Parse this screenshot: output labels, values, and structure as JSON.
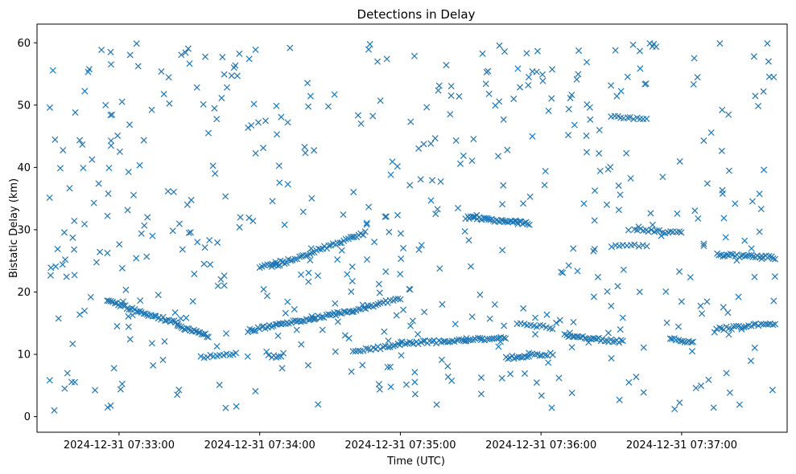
{
  "chart_data": {
    "type": "scatter",
    "title": "Detections in Delay",
    "xlabel": "Time (UTC)",
    "ylabel": "Bistatic Delay (km)",
    "marker": "x",
    "color": "#1f77b4",
    "grid": false,
    "legend": "none",
    "xlim": [
      "2024-12-31 07:32:25",
      "2024-12-31 07:37:45"
    ],
    "ylim": [
      -2.5,
      63
    ],
    "x_ticks": [
      "2024-12-31 07:33:00",
      "2024-12-31 07:34:00",
      "2024-12-31 07:35:00",
      "2024-12-31 07:36:00",
      "2024-12-31 07:37:00"
    ],
    "y_ticks": [
      0,
      10,
      20,
      30,
      40,
      50,
      60
    ],
    "tracks": [
      {
        "start": "2024-12-31 07:32:55",
        "end": "2024-12-31 07:33:25",
        "delay_start": 18.5,
        "delay_end": 15.0,
        "points": 40
      },
      {
        "start": "2024-12-31 07:33:25",
        "end": "2024-12-31 07:33:38",
        "delay_start": 14.5,
        "delay_end": 13.0,
        "points": 20
      },
      {
        "start": "2024-12-31 07:33:35",
        "end": "2024-12-31 07:33:50",
        "delay_start": 9.5,
        "delay_end": 10.0,
        "points": 12
      },
      {
        "start": "2024-12-31 07:33:55",
        "end": "2024-12-31 07:34:40",
        "delay_start": 13.8,
        "delay_end": 17.0,
        "points": 55
      },
      {
        "start": "2024-12-31 07:34:00",
        "end": "2024-12-31 07:34:10",
        "delay_start": 24.0,
        "delay_end": 25.0,
        "points": 10
      },
      {
        "start": "2024-12-31 07:34:05",
        "end": "2024-12-31 07:34:45",
        "delay_start": 24.0,
        "delay_end": 29.5,
        "points": 45
      },
      {
        "start": "2024-12-31 07:34:40",
        "end": "2024-12-31 07:35:00",
        "delay_start": 17.0,
        "delay_end": 19.0,
        "points": 20
      },
      {
        "start": "2024-12-31 07:34:05",
        "end": "2024-12-31 07:34:10",
        "delay_start": 9.5,
        "delay_end": 10.0,
        "points": 6
      },
      {
        "start": "2024-12-31 07:34:40",
        "end": "2024-12-31 07:35:00",
        "delay_start": 10.5,
        "delay_end": 11.5,
        "points": 20
      },
      {
        "start": "2024-12-31 07:35:00",
        "end": "2024-12-31 07:35:28",
        "delay_start": 11.8,
        "delay_end": 12.2,
        "points": 30
      },
      {
        "start": "2024-12-31 07:35:28",
        "end": "2024-12-31 07:35:45",
        "delay_start": 12.5,
        "delay_end": 12.5,
        "points": 18
      },
      {
        "start": "2024-12-31 07:35:28",
        "end": "2024-12-31 07:35:55",
        "delay_start": 32.0,
        "delay_end": 31.0,
        "points": 40
      },
      {
        "start": "2024-12-31 07:35:45",
        "end": "2024-12-31 07:35:55",
        "delay_start": 9.5,
        "delay_end": 9.5,
        "points": 12
      },
      {
        "start": "2024-12-31 07:35:50",
        "end": "2024-12-31 07:36:05",
        "delay_start": 14.8,
        "delay_end": 14.3,
        "points": 12
      },
      {
        "start": "2024-12-31 07:35:55",
        "end": "2024-12-31 07:36:05",
        "delay_start": 10.0,
        "delay_end": 10.0,
        "points": 10
      },
      {
        "start": "2024-12-31 07:36:10",
        "end": "2024-12-31 07:36:35",
        "delay_start": 13.0,
        "delay_end": 12.0,
        "points": 30
      },
      {
        "start": "2024-12-31 07:36:30",
        "end": "2024-12-31 07:36:45",
        "delay_start": 48.0,
        "delay_end": 48.0,
        "points": 12
      },
      {
        "start": "2024-12-31 07:36:30",
        "end": "2024-12-31 07:36:45",
        "delay_start": 27.5,
        "delay_end": 27.5,
        "points": 10
      },
      {
        "start": "2024-12-31 07:36:40",
        "end": "2024-12-31 07:37:00",
        "delay_start": 30.0,
        "delay_end": 29.5,
        "points": 18
      },
      {
        "start": "2024-12-31 07:36:55",
        "end": "2024-12-31 07:37:05",
        "delay_start": 12.5,
        "delay_end": 12.0,
        "points": 12
      },
      {
        "start": "2024-12-31 07:37:15",
        "end": "2024-12-31 07:37:40",
        "delay_start": 26.0,
        "delay_end": 25.5,
        "points": 30
      },
      {
        "start": "2024-12-31 07:37:15",
        "end": "2024-12-31 07:37:40",
        "delay_start": 14.0,
        "delay_end": 15.0,
        "points": 25
      }
    ],
    "clutter": {
      "count": 520,
      "delay_range": [
        1,
        60
      ],
      "time_range": [
        "2024-12-31 07:32:30",
        "2024-12-31 07:37:40"
      ]
    }
  }
}
